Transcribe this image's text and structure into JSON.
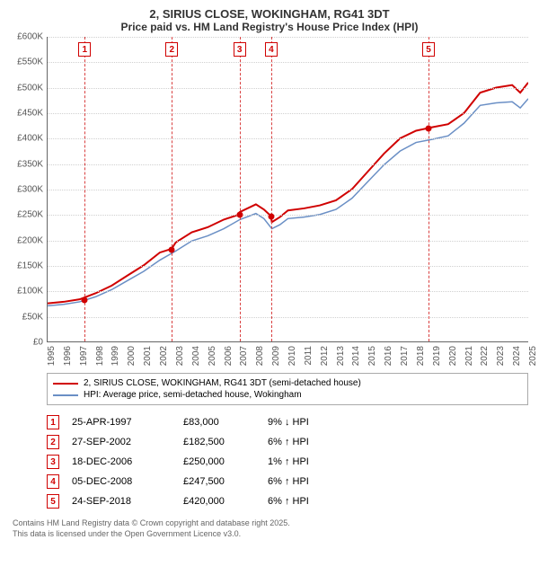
{
  "title": "2, SIRIUS CLOSE, WOKINGHAM, RG41 3DT",
  "subtitle": "Price paid vs. HM Land Registry's House Price Index (HPI)",
  "chart": {
    "type": "line",
    "background_color": "#ffffff",
    "grid_color": "#d0d0d0",
    "ylim": [
      0,
      600000
    ],
    "ytick_step": 50000,
    "y_ticks": [
      "£0",
      "£50K",
      "£100K",
      "£150K",
      "£200K",
      "£250K",
      "£300K",
      "£350K",
      "£400K",
      "£450K",
      "£500K",
      "£550K",
      "£600K"
    ],
    "xlim": [
      1995,
      2025
    ],
    "x_ticks": [
      "1995",
      "1996",
      "1997",
      "1998",
      "1999",
      "2000",
      "2001",
      "2002",
      "2003",
      "2004",
      "2005",
      "2006",
      "2007",
      "2008",
      "2009",
      "2010",
      "2011",
      "2012",
      "2013",
      "2014",
      "2015",
      "2016",
      "2017",
      "2018",
      "2019",
      "2020",
      "2021",
      "2022",
      "2023",
      "2024",
      "2025"
    ],
    "series": [
      {
        "name": "2, SIRIUS CLOSE, WOKINGHAM, RG41 3DT (semi-detached house)",
        "color": "#d00000",
        "line_width": 2,
        "points": [
          [
            1995,
            75000
          ],
          [
            1996,
            78000
          ],
          [
            1997,
            83000
          ],
          [
            1998,
            95000
          ],
          [
            1999,
            110000
          ],
          [
            2000,
            130000
          ],
          [
            2001,
            150000
          ],
          [
            2002,
            175000
          ],
          [
            2002.74,
            182500
          ],
          [
            2003,
            195000
          ],
          [
            2004,
            215000
          ],
          [
            2005,
            225000
          ],
          [
            2006,
            240000
          ],
          [
            2006.96,
            250000
          ],
          [
            2007,
            255000
          ],
          [
            2008,
            270000
          ],
          [
            2008.5,
            260000
          ],
          [
            2008.93,
            247500
          ],
          [
            2009,
            235000
          ],
          [
            2009.5,
            245000
          ],
          [
            2010,
            258000
          ],
          [
            2011,
            262000
          ],
          [
            2012,
            268000
          ],
          [
            2013,
            278000
          ],
          [
            2014,
            300000
          ],
          [
            2015,
            335000
          ],
          [
            2016,
            370000
          ],
          [
            2017,
            400000
          ],
          [
            2018,
            415000
          ],
          [
            2018.73,
            420000
          ],
          [
            2019,
            422000
          ],
          [
            2020,
            428000
          ],
          [
            2021,
            450000
          ],
          [
            2022,
            490000
          ],
          [
            2023,
            500000
          ],
          [
            2024,
            505000
          ],
          [
            2024.5,
            490000
          ],
          [
            2025,
            510000
          ]
        ]
      },
      {
        "name": "HPI: Average price, semi-detached house, Wokingham",
        "color": "#6a8fc5",
        "line_width": 1.5,
        "points": [
          [
            1995,
            70000
          ],
          [
            1996,
            73000
          ],
          [
            1997,
            78000
          ],
          [
            1998,
            88000
          ],
          [
            1999,
            102000
          ],
          [
            2000,
            120000
          ],
          [
            2001,
            138000
          ],
          [
            2002,
            160000
          ],
          [
            2003,
            178000
          ],
          [
            2004,
            198000
          ],
          [
            2005,
            208000
          ],
          [
            2006,
            222000
          ],
          [
            2007,
            240000
          ],
          [
            2008,
            252000
          ],
          [
            2008.5,
            242000
          ],
          [
            2009,
            222000
          ],
          [
            2009.5,
            230000
          ],
          [
            2010,
            242000
          ],
          [
            2011,
            245000
          ],
          [
            2012,
            250000
          ],
          [
            2013,
            260000
          ],
          [
            2014,
            282000
          ],
          [
            2015,
            315000
          ],
          [
            2016,
            348000
          ],
          [
            2017,
            375000
          ],
          [
            2018,
            392000
          ],
          [
            2019,
            398000
          ],
          [
            2020,
            405000
          ],
          [
            2021,
            430000
          ],
          [
            2022,
            465000
          ],
          [
            2023,
            470000
          ],
          [
            2024,
            472000
          ],
          [
            2024.5,
            460000
          ],
          [
            2025,
            478000
          ]
        ]
      }
    ],
    "sale_markers": [
      {
        "n": "1",
        "year": 1997.31,
        "price": 83000
      },
      {
        "n": "2",
        "year": 2002.74,
        "price": 182500
      },
      {
        "n": "3",
        "year": 2006.96,
        "price": 250000
      },
      {
        "n": "4",
        "year": 2008.93,
        "price": 247500
      },
      {
        "n": "5",
        "year": 2018.73,
        "price": 420000
      }
    ],
    "marker_color": "#d00000",
    "vline_color": "#d94040"
  },
  "legend": {
    "items": [
      {
        "color": "#d00000",
        "label": "2, SIRIUS CLOSE, WOKINGHAM, RG41 3DT (semi-detached house)"
      },
      {
        "color": "#6a8fc5",
        "label": "HPI: Average price, semi-detached house, Wokingham"
      }
    ]
  },
  "sales": [
    {
      "n": "1",
      "date": "25-APR-1997",
      "price": "£83,000",
      "diff": "9% ↓ HPI"
    },
    {
      "n": "2",
      "date": "27-SEP-2002",
      "price": "£182,500",
      "diff": "6% ↑ HPI"
    },
    {
      "n": "3",
      "date": "18-DEC-2006",
      "price": "£250,000",
      "diff": "1% ↑ HPI"
    },
    {
      "n": "4",
      "date": "05-DEC-2008",
      "price": "£247,500",
      "diff": "6% ↑ HPI"
    },
    {
      "n": "5",
      "date": "24-SEP-2018",
      "price": "£420,000",
      "diff": "6% ↑ HPI"
    }
  ],
  "footer1": "Contains HM Land Registry data © Crown copyright and database right 2025.",
  "footer2": "This data is licensed under the Open Government Licence v3.0."
}
